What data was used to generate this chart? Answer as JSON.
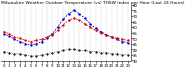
{
  "title": "Milwaukee Weather Outdoor Temperature (vs) THSW Index per Hour (Last 24 Hours)",
  "hours": [
    0,
    1,
    2,
    3,
    4,
    5,
    6,
    7,
    8,
    9,
    10,
    11,
    12,
    13,
    14,
    15,
    16,
    17,
    18,
    19,
    20,
    21,
    22,
    23
  ],
  "outdoor_temp": [
    56,
    54,
    51,
    50,
    48,
    47,
    48,
    49,
    51,
    53,
    57,
    62,
    66,
    68,
    66,
    63,
    60,
    57,
    55,
    53,
    51,
    50,
    49,
    48
  ],
  "thsw_index": [
    54,
    52,
    49,
    47,
    45,
    44,
    45,
    47,
    50,
    54,
    60,
    67,
    72,
    75,
    72,
    68,
    63,
    59,
    56,
    53,
    51,
    49,
    47,
    46
  ],
  "dew_point": [
    38,
    37,
    36,
    36,
    35,
    34,
    34,
    35,
    36,
    37,
    38,
    39,
    40,
    40,
    39,
    39,
    38,
    38,
    37,
    37,
    36,
    36,
    35,
    35
  ],
  "temp_color": "#dd0000",
  "thsw_color": "#0000cc",
  "dew_color": "#000000",
  "bg_color": "#ffffff",
  "grid_color": "#888888",
  "ylim": [
    30,
    80
  ],
  "yticks": [
    30,
    35,
    40,
    45,
    50,
    55,
    60,
    65,
    70,
    75,
    80
  ],
  "title_fontsize": 3.2,
  "tick_fontsize": 2.8,
  "linewidth": 0.6,
  "markersize": 1.4
}
